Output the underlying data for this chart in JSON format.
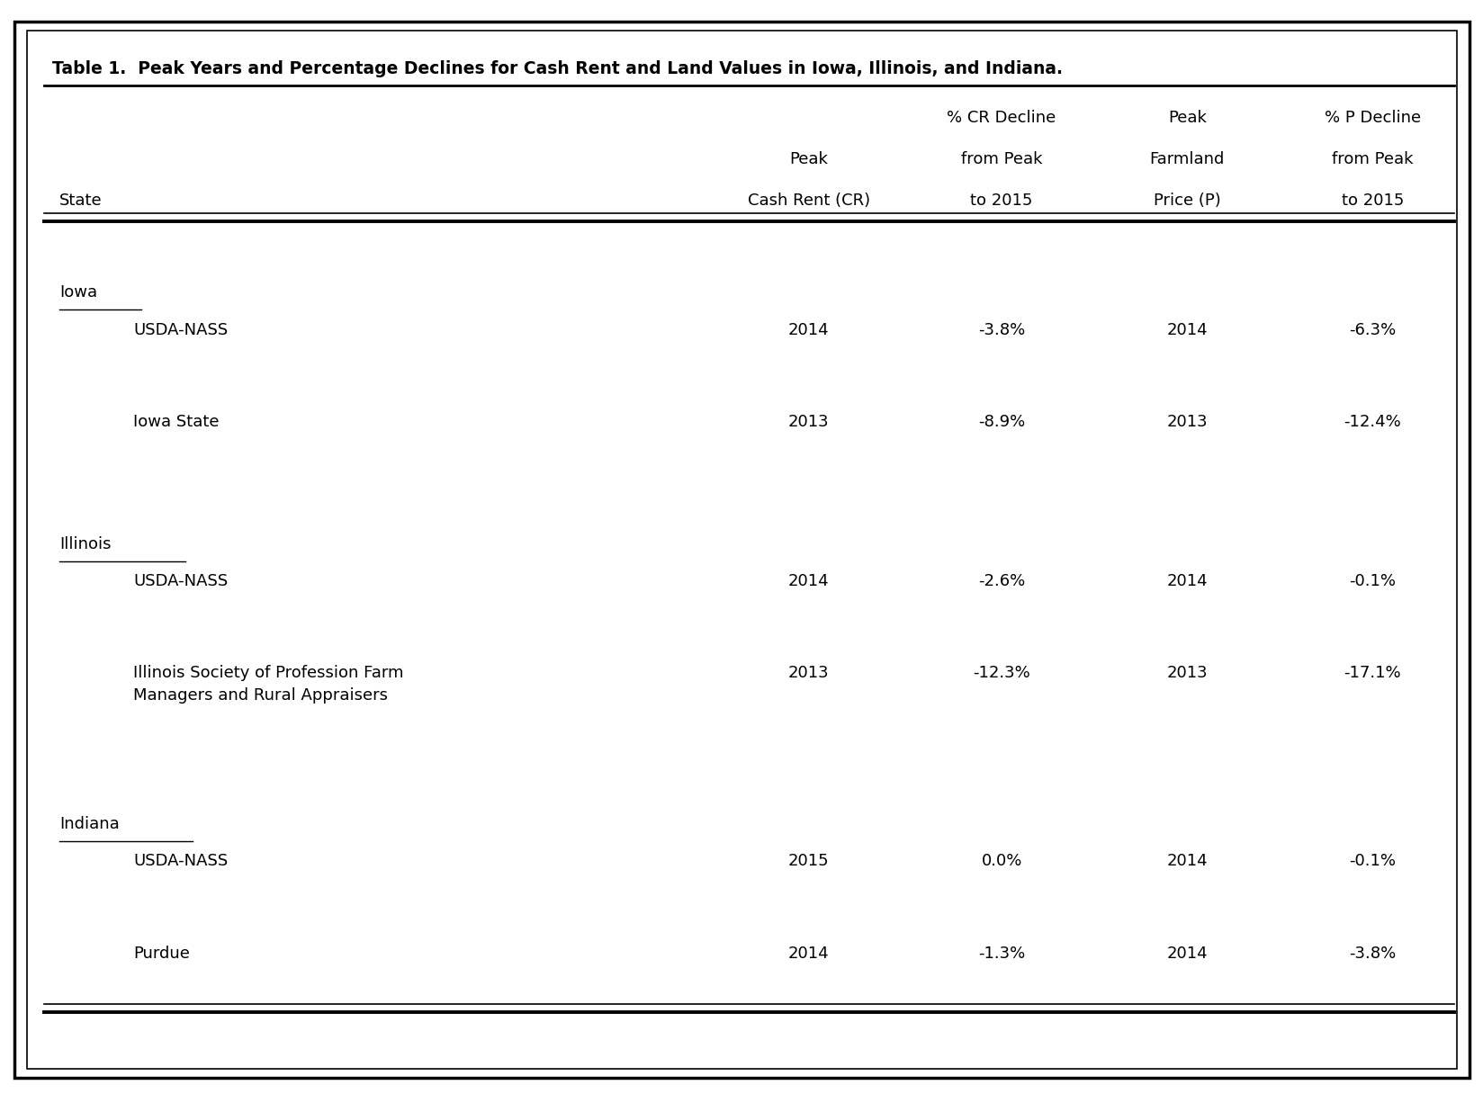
{
  "title": "Table 1.  Peak Years and Percentage Declines for Cash Rent and Land Values in Iowa, Illinois, and Indiana.",
  "sections": [
    {
      "state": "Iowa",
      "rows": [
        [
          "USDA-NASS",
          "2014",
          "-3.8%",
          "2014",
          "-6.3%"
        ],
        [
          "Iowa State",
          "2013",
          "-8.9%",
          "2013",
          "-12.4%"
        ]
      ]
    },
    {
      "state": "Illinois",
      "rows": [
        [
          "USDA-NASS",
          "2014",
          "-2.6%",
          "2014",
          "-0.1%"
        ],
        [
          "Illinois Society of Profession Farm\nManagers and Rural Appraisers",
          "2013",
          "-12.3%",
          "2013",
          "-17.1%"
        ]
      ]
    },
    {
      "state": "Indiana",
      "rows": [
        [
          "USDA-NASS",
          "2015",
          "0.0%",
          "2014",
          "-0.1%"
        ],
        [
          "Purdue",
          "2014",
          "-1.3%",
          "2014",
          "-3.8%"
        ]
      ]
    }
  ],
  "bg_color": "#ffffff",
  "border_color": "#000000",
  "text_color": "#000000",
  "font_size": 13,
  "title_font_size": 13.5,
  "state_name_widths": {
    "Iowa": 0.055,
    "Illinois": 0.085,
    "Indiana": 0.09
  }
}
